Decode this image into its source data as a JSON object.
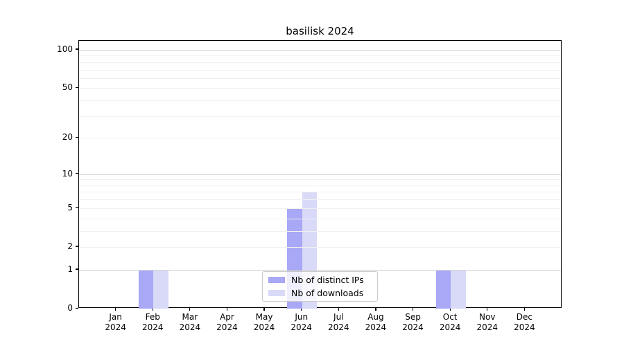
{
  "chart_data": {
    "type": "bar",
    "title": "basilisk 2024",
    "categories": [
      "Jan 2024",
      "Feb 2024",
      "Mar 2024",
      "Apr 2024",
      "May 2024",
      "Jun 2024",
      "Jul 2024",
      "Aug 2024",
      "Sep 2024",
      "Oct 2024",
      "Nov 2024",
      "Dec 2024"
    ],
    "series": [
      {
        "name": "Nb of distinct IPs",
        "color": "#a8a8f6",
        "values": [
          0,
          1,
          0,
          0,
          0,
          5,
          0,
          0,
          0,
          1,
          0,
          0
        ]
      },
      {
        "name": "Nb of downloads",
        "color": "#d9d9f8",
        "values": [
          0,
          1,
          0,
          0,
          0,
          7,
          0,
          0,
          0,
          1,
          0,
          0
        ]
      }
    ],
    "xlabel": "",
    "ylabel": "",
    "yscale": "log1p",
    "ylim": [
      0,
      117.5
    ],
    "yticks_labeled": [
      0,
      1,
      2,
      5,
      10,
      20,
      50,
      100
    ],
    "gridlines_major": [
      1,
      10,
      100
    ],
    "gridlines_minor": [
      2,
      3,
      4,
      5,
      6,
      7,
      8,
      9,
      20,
      30,
      40,
      50,
      60,
      70,
      80,
      90
    ],
    "grid": "horizontal",
    "legend_position": "lower center"
  },
  "colors": {
    "grid_major": "#d4d4d4",
    "grid_minor": "#f0f0f0",
    "axis": "#000000",
    "legend_border": "#cccccc"
  }
}
